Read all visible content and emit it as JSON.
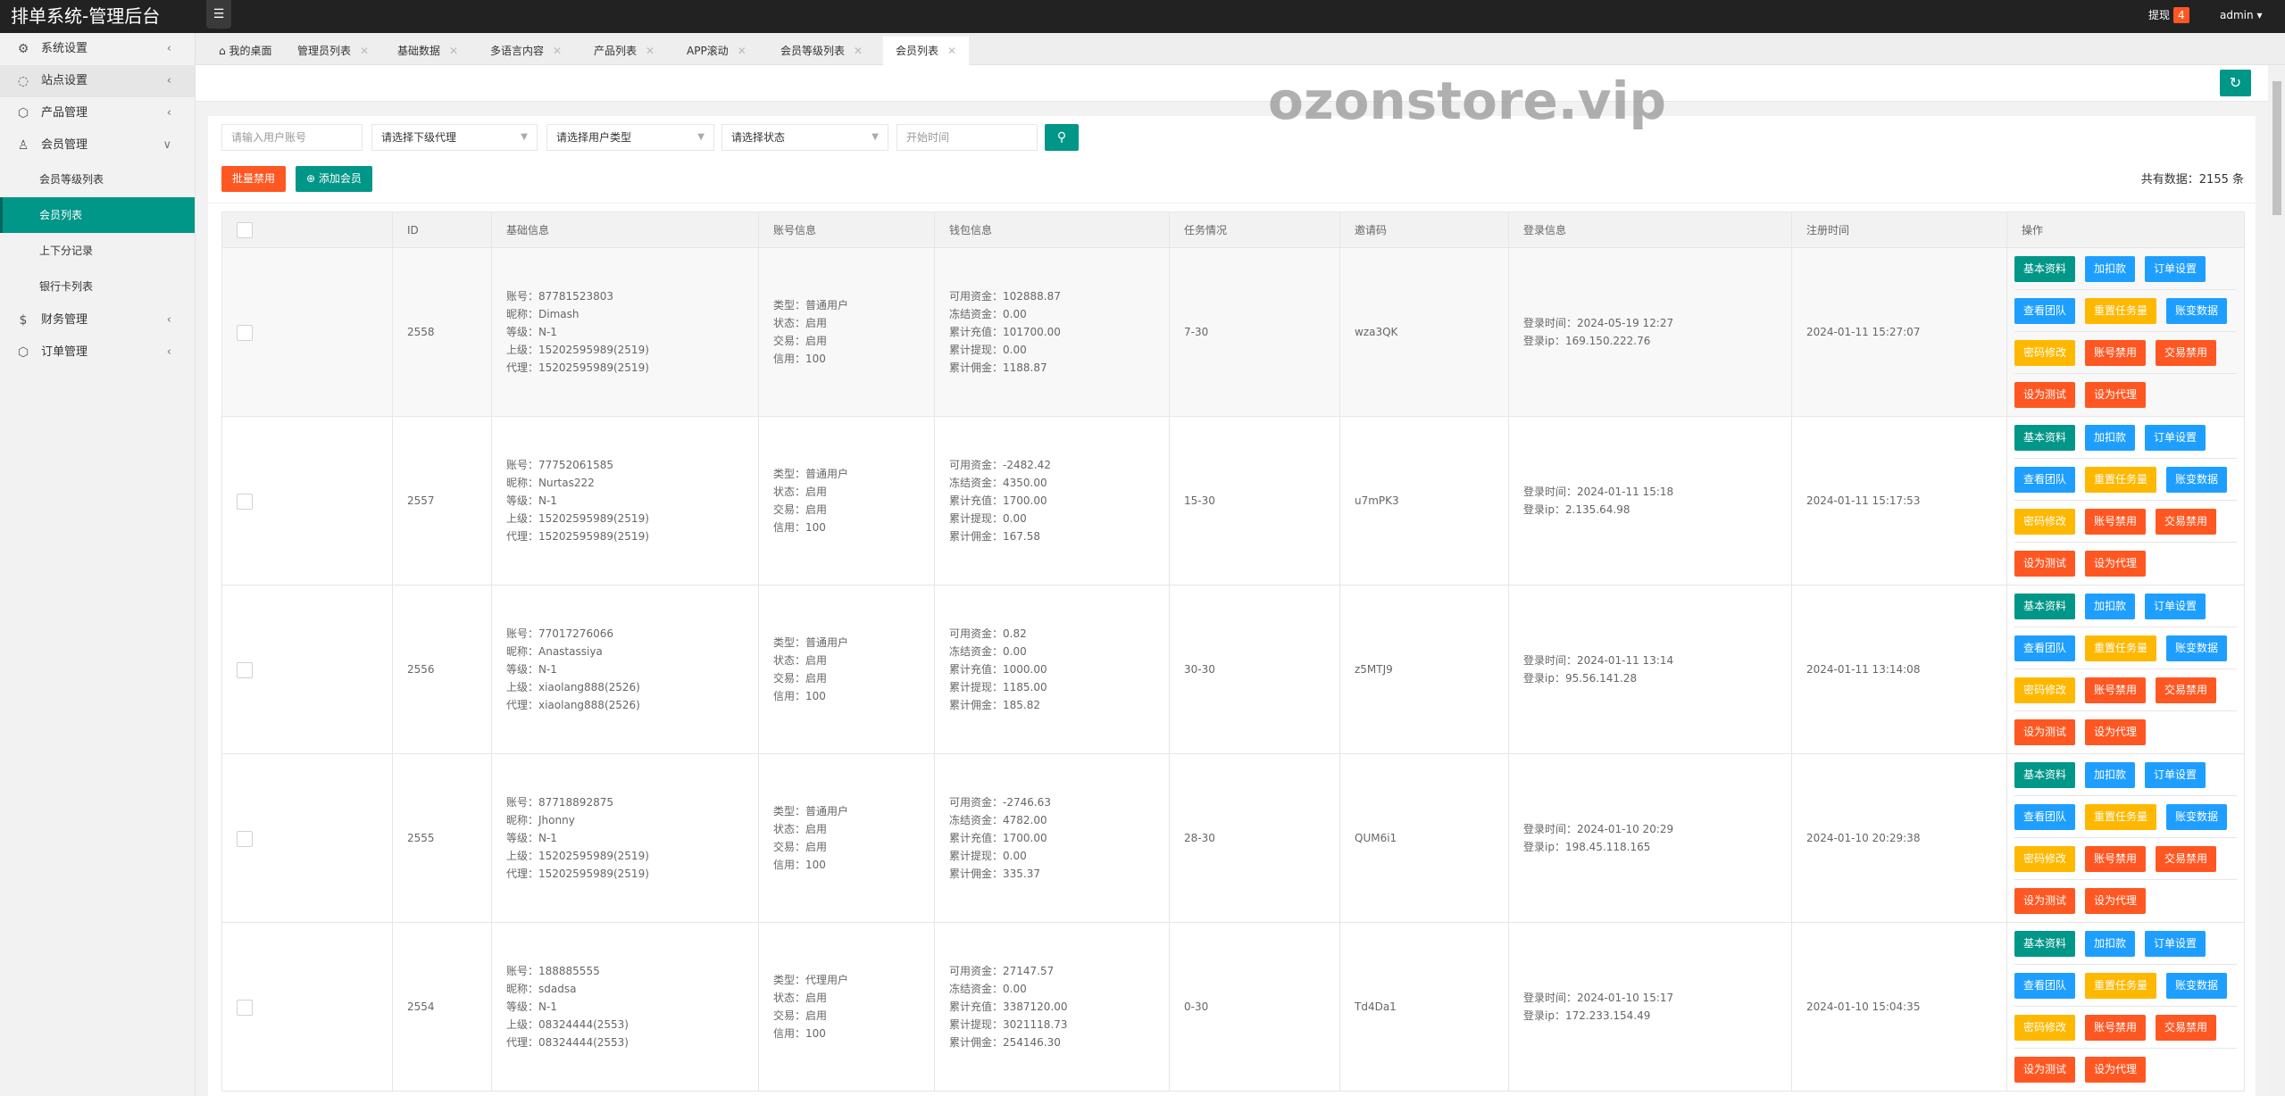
{
  "app": {
    "title": "排单系统-管理后台",
    "withdraw_label": "提现",
    "withdraw_count": "4",
    "user": "admin"
  },
  "colors": {
    "primary": "#009688",
    "normal": "#1E9FFF",
    "warm": "#FFB800",
    "danger": "#FF5722",
    "topbar": "#222222"
  },
  "sidebar": {
    "items": [
      {
        "label": "系统设置",
        "icon": "gear-icon",
        "glyph": "⚙",
        "expanded": false
      },
      {
        "label": "站点设置",
        "icon": "site-icon",
        "glyph": "◌",
        "expanded": false
      },
      {
        "label": "产品管理",
        "icon": "product-icon",
        "glyph": "⬡",
        "expanded": false
      },
      {
        "label": "会员管理",
        "icon": "user-icon",
        "glyph": "♙",
        "expanded": true
      },
      {
        "label": "财务管理",
        "icon": "dollar-icon",
        "glyph": "$",
        "expanded": false
      },
      {
        "label": "订单管理",
        "icon": "order-icon",
        "glyph": "⬡",
        "expanded": false
      }
    ],
    "sub_items": [
      "会员等级列表",
      "会员列表",
      "上下分记录",
      "银行卡列表"
    ],
    "active_sub": "会员列表"
  },
  "tabs": [
    {
      "label": "我的桌面",
      "home": true
    },
    {
      "label": "管理员列表"
    },
    {
      "label": "基础数据"
    },
    {
      "label": "多语言内容"
    },
    {
      "label": "产品列表"
    },
    {
      "label": "APP滚动"
    },
    {
      "label": "会员等级列表"
    },
    {
      "label": "会员列表",
      "active": true
    }
  ],
  "filters": {
    "account_placeholder": "请输入用户账号",
    "agent_select": "请选择下级代理",
    "type_select": "请选择用户类型",
    "status_select": "请选择状态",
    "start_time_placeholder": "开始时间"
  },
  "toolbar": {
    "batch_disable": "批量禁用",
    "add_member": "添加会员",
    "total": "共有数据：2155 条"
  },
  "table": {
    "headers": [
      "",
      "ID",
      "基础信息",
      "账号信息",
      "钱包信息",
      "任务情况",
      "邀请码",
      "登录信息",
      "注册时间",
      "操作"
    ],
    "rows": [
      {
        "id": "2558",
        "basic": [
          "账号：87781523803",
          "昵称：Dimash",
          "等级：N-1",
          "上级：15202595989(2519)",
          "代理：15202595989(2519)"
        ],
        "account": [
          "类型：普通用户",
          "状态：启用",
          "交易：启用",
          "信用：100"
        ],
        "wallet": [
          "可用资金：102888.87",
          "冻结资金：0.00",
          "累计充值：101700.00",
          "累计提现：0.00",
          "累计佣金：1188.87"
        ],
        "task": "7-30",
        "invite": "wza3QK",
        "login": [
          "登录时间：2024-05-19 12:27",
          "登录ip：169.150.222.76"
        ],
        "reg": "2024-01-11 15:27:07"
      },
      {
        "id": "2557",
        "basic": [
          "账号：77752061585",
          "昵称：Nurtas222",
          "等级：N-1",
          "上级：15202595989(2519)",
          "代理：15202595989(2519)"
        ],
        "account": [
          "类型：普通用户",
          "状态：启用",
          "交易：启用",
          "信用：100"
        ],
        "wallet": [
          "可用资金：-2482.42",
          "冻结资金：4350.00",
          "累计充值：1700.00",
          "累计提现：0.00",
          "累计佣金：167.58"
        ],
        "task": "15-30",
        "invite": "u7mPK3",
        "login": [
          "登录时间：2024-01-11 15:18",
          "登录ip：2.135.64.98"
        ],
        "reg": "2024-01-11 15:17:53"
      },
      {
        "id": "2556",
        "basic": [
          "账号：77017276066",
          "昵称：Anastassiya",
          "等级：N-1",
          "上级：xiaolang888(2526)",
          "代理：xiaolang888(2526)"
        ],
        "account": [
          "类型：普通用户",
          "状态：启用",
          "交易：启用",
          "信用：100"
        ],
        "wallet": [
          "可用资金：0.82",
          "冻结资金：0.00",
          "累计充值：1000.00",
          "累计提现：1185.00",
          "累计佣金：185.82"
        ],
        "task": "30-30",
        "invite": "z5MTJ9",
        "login": [
          "登录时间：2024-01-11 13:14",
          "登录ip：95.56.141.28"
        ],
        "reg": "2024-01-11 13:14:08"
      },
      {
        "id": "2555",
        "basic": [
          "账号：87718892875",
          "昵称：Jhonny",
          "等级：N-1",
          "上级：15202595989(2519)",
          "代理：15202595989(2519)"
        ],
        "account": [
          "类型：普通用户",
          "状态：启用",
          "交易：启用",
          "信用：100"
        ],
        "wallet": [
          "可用资金：-2746.63",
          "冻结资金：4782.00",
          "累计充值：1700.00",
          "累计提现：0.00",
          "累计佣金：335.37"
        ],
        "task": "28-30",
        "invite": "QUM6i1",
        "login": [
          "登录时间：2024-01-10 20:29",
          "登录ip：198.45.118.165"
        ],
        "reg": "2024-01-10 20:29:38"
      },
      {
        "id": "2554",
        "basic": [
          "账号：188885555",
          "昵称：sdadsa",
          "等级：N-1",
          "上级：08324444(2553)",
          "代理：08324444(2553)"
        ],
        "account": [
          "类型：代理用户",
          "状态：启用",
          "交易：启用",
          "信用：100"
        ],
        "wallet": [
          "可用资金：27147.57",
          "冻结资金：0.00",
          "累计充值：3387120.00",
          "累计提现：3021118.73",
          "累计佣金：254146.30"
        ],
        "task": "0-30",
        "invite": "Td4Da1",
        "login": [
          "登录时间：2024-01-10 15:17",
          "登录ip：172.233.154.49"
        ],
        "reg": "2024-01-10 15:04:35"
      }
    ],
    "actions": [
      [
        {
          "label": "基本资料",
          "color": "#009688"
        },
        {
          "label": "加扣款",
          "color": "#1E9FFF"
        },
        {
          "label": "订单设置",
          "color": "#1E9FFF"
        }
      ],
      [
        {
          "label": "查看团队",
          "color": "#1E9FFF"
        },
        {
          "label": "重置任务量",
          "color": "#FFB800"
        },
        {
          "label": "账变数据",
          "color": "#1E9FFF"
        }
      ],
      [
        {
          "label": "密码修改",
          "color": "#FFB800"
        },
        {
          "label": "账号禁用",
          "color": "#FF5722"
        },
        {
          "label": "交易禁用",
          "color": "#FF5722"
        }
      ],
      [
        {
          "label": "设为测试",
          "color": "#FF5722"
        },
        {
          "label": "设为代理",
          "color": "#FF5722"
        }
      ]
    ]
  },
  "watermark": "ozonstore.vip"
}
